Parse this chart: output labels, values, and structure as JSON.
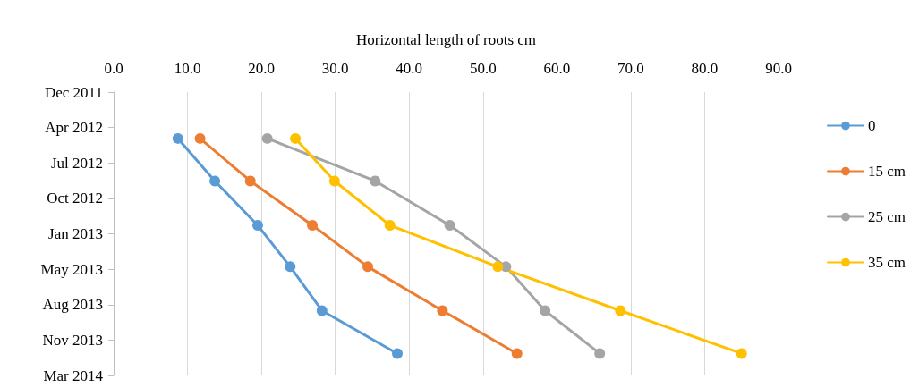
{
  "chart_data": {
    "type": "line",
    "orientation": "horizontal",
    "xlabel": "Horizontal length of roots cm",
    "xlim": [
      0,
      90
    ],
    "xticks": [
      {
        "value": 0,
        "label": "0.0"
      },
      {
        "value": 10,
        "label": "10.0"
      },
      {
        "value": 20,
        "label": "20.0"
      },
      {
        "value": 30,
        "label": "30.0"
      },
      {
        "value": 40,
        "label": "40.0"
      },
      {
        "value": 50,
        "label": "50.0"
      },
      {
        "value": 60,
        "label": "60.0"
      },
      {
        "value": 70,
        "label": "70.0"
      },
      {
        "value": 80,
        "label": "80.0"
      },
      {
        "value": 90,
        "label": "90.0"
      }
    ],
    "ylim": [
      "2014-03-04",
      "2011-12-25"
    ],
    "yticks": [
      {
        "value": "2011-12-25",
        "label": "Dec 2011"
      },
      {
        "value": "2012-04-03",
        "label": "Apr 2012"
      },
      {
        "value": "2012-07-12",
        "label": "Jul 2012"
      },
      {
        "value": "2012-10-20",
        "label": "Oct 2012"
      },
      {
        "value": "2013-01-28",
        "label": "Jan 2013"
      },
      {
        "value": "2013-05-08",
        "label": "May 2013"
      },
      {
        "value": "2013-08-16",
        "label": "Aug 2013"
      },
      {
        "value": "2013-11-24",
        "label": "Nov 2013"
      },
      {
        "value": "2014-03-04",
        "label": "Mar 2014"
      }
    ],
    "x": [
      "2012-05-04",
      "2012-09-01",
      "2013-01-04",
      "2013-05-01",
      "2013-09-02",
      "2014-01-01"
    ],
    "series": [
      {
        "name": "0",
        "color": "#5b9bd5",
        "values": [
          8.7,
          13.7,
          19.5,
          23.9,
          28.2,
          38.4
        ]
      },
      {
        "name": "15 cm",
        "color": "#ed7d31",
        "values": [
          11.7,
          18.5,
          26.9,
          34.4,
          44.5,
          54.6
        ]
      },
      {
        "name": "25 cm",
        "color": "#a5a5a5",
        "values": [
          20.8,
          35.4,
          45.5,
          53.1,
          58.4,
          65.8
        ]
      },
      {
        "name": "35 cm",
        "color": "#ffc000",
        "values": [
          24.6,
          29.9,
          37.4,
          52.0,
          68.6,
          85.0
        ]
      }
    ],
    "grid": "x",
    "legend": "right",
    "marker": "circle",
    "line_style": "solid"
  }
}
